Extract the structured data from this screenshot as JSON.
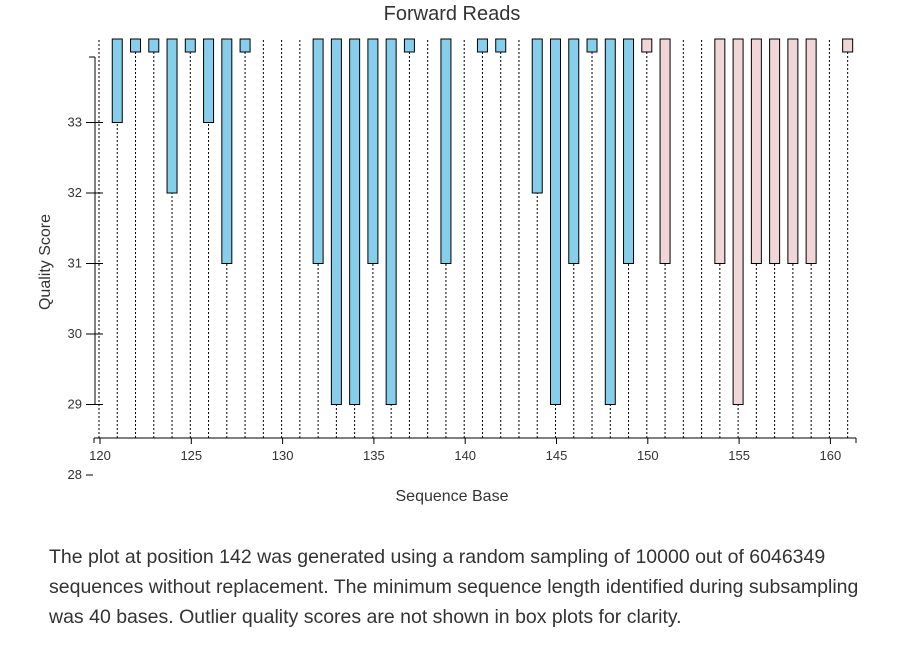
{
  "caption": "The plot at position 142 was generated using a random sampling of 10000 out of 6046349 sequences without replacement. The minimum sequence length identified during subsampling was 40 bases. Outlier quality scores are not shown in box plots for clarity.",
  "colors": {
    "normal": "#87ceeb",
    "low": "#f0d6d6",
    "outline": "#000000"
  },
  "chart_data": {
    "type": "box",
    "title": "Forward Reads",
    "xlabel": "Sequence Base",
    "ylabel": "Quality Score",
    "xlim": [
      120,
      161
    ],
    "ylim": [
      28,
      34.2
    ],
    "xticks": [
      120,
      125,
      130,
      135,
      140,
      145,
      150,
      155,
      160
    ],
    "yticks": [
      28,
      29,
      30,
      31,
      32,
      33
    ],
    "grid": false,
    "series": [
      {
        "x": 120,
        "whisker_low": 29,
        "q1": 34.3,
        "median": 34.3,
        "q3": 34.3,
        "whisker_high": 34.3,
        "color": "normal"
      },
      {
        "x": 121,
        "whisker_low": 28.5,
        "q1": 33,
        "median": 34.3,
        "q3": 34.3,
        "whisker_high": 34.3,
        "color": "normal"
      },
      {
        "x": 122,
        "whisker_low": 28.5,
        "q1": 34,
        "median": 34.3,
        "q3": 34.3,
        "whisker_high": 34.3,
        "color": "normal"
      },
      {
        "x": 123,
        "whisker_low": 28.5,
        "q1": 34,
        "median": 34.3,
        "q3": 34.3,
        "whisker_high": 34.3,
        "color": "normal"
      },
      {
        "x": 124,
        "whisker_low": 28.5,
        "q1": 32,
        "median": 34.3,
        "q3": 34.3,
        "whisker_high": 34.3,
        "color": "normal"
      },
      {
        "x": 125,
        "whisker_low": 28.5,
        "q1": 34,
        "median": 34.3,
        "q3": 34.3,
        "whisker_high": 34.3,
        "color": "normal"
      },
      {
        "x": 126,
        "whisker_low": 28.5,
        "q1": 33,
        "median": 34.3,
        "q3": 34.3,
        "whisker_high": 34.3,
        "color": "normal"
      },
      {
        "x": 127,
        "whisker_low": 28.5,
        "q1": 31,
        "median": 34.3,
        "q3": 34.3,
        "whisker_high": 34.3,
        "color": "normal"
      },
      {
        "x": 128,
        "whisker_low": 28.5,
        "q1": 34,
        "median": 34.3,
        "q3": 34.3,
        "whisker_high": 34.3,
        "color": "normal"
      },
      {
        "x": 129,
        "whisker_low": 28.5,
        "q1": 34.3,
        "median": 34.3,
        "q3": 34.3,
        "whisker_high": 34.3,
        "color": "normal"
      },
      {
        "x": 130,
        "whisker_low": 28.5,
        "q1": 34.3,
        "median": 34.3,
        "q3": 34.3,
        "whisker_high": 34.3,
        "color": "normal"
      },
      {
        "x": 131,
        "whisker_low": 28.5,
        "q1": 34.3,
        "median": 34.3,
        "q3": 34.3,
        "whisker_high": 34.3,
        "color": "normal"
      },
      {
        "x": 132,
        "whisker_low": 28.5,
        "q1": 31,
        "median": 34.3,
        "q3": 34.3,
        "whisker_high": 34.3,
        "color": "normal"
      },
      {
        "x": 133,
        "whisker_low": 28.5,
        "q1": 29,
        "median": 34.3,
        "q3": 34.3,
        "whisker_high": 34.3,
        "color": "normal"
      },
      {
        "x": 134,
        "whisker_low": 28.5,
        "q1": 29,
        "median": 34.3,
        "q3": 34.3,
        "whisker_high": 34.3,
        "color": "normal"
      },
      {
        "x": 135,
        "whisker_low": 28.5,
        "q1": 31,
        "median": 34.3,
        "q3": 34.3,
        "whisker_high": 34.3,
        "color": "normal"
      },
      {
        "x": 136,
        "whisker_low": 28.5,
        "q1": 29,
        "median": 34.3,
        "q3": 34.3,
        "whisker_high": 34.3,
        "color": "normal"
      },
      {
        "x": 137,
        "whisker_low": 28.5,
        "q1": 34,
        "median": 34.3,
        "q3": 34.3,
        "whisker_high": 34.3,
        "color": "normal"
      },
      {
        "x": 138,
        "whisker_low": 28.5,
        "q1": 34.3,
        "median": 34.3,
        "q3": 34.3,
        "whisker_high": 34.3,
        "color": "normal"
      },
      {
        "x": 139,
        "whisker_low": 28.5,
        "q1": 31,
        "median": 34.3,
        "q3": 34.3,
        "whisker_high": 34.3,
        "color": "normal"
      },
      {
        "x": 140,
        "whisker_low": 28.5,
        "q1": 34.3,
        "median": 34.3,
        "q3": 34.3,
        "whisker_high": 34.3,
        "color": "normal"
      },
      {
        "x": 141,
        "whisker_low": 28.5,
        "q1": 34,
        "median": 34.3,
        "q3": 34.3,
        "whisker_high": 34.3,
        "color": "normal"
      },
      {
        "x": 142,
        "whisker_low": 28.5,
        "q1": 34,
        "median": 34.3,
        "q3": 34.3,
        "whisker_high": 34.3,
        "color": "normal"
      },
      {
        "x": 143,
        "whisker_low": 28.5,
        "q1": 34.3,
        "median": 34.3,
        "q3": 34.3,
        "whisker_high": 34.3,
        "color": "normal"
      },
      {
        "x": 144,
        "whisker_low": 28.5,
        "q1": 32,
        "median": 34.3,
        "q3": 34.3,
        "whisker_high": 34.3,
        "color": "normal"
      },
      {
        "x": 145,
        "whisker_low": 28.5,
        "q1": 29,
        "median": 34.3,
        "q3": 34.3,
        "whisker_high": 34.3,
        "color": "normal"
      },
      {
        "x": 146,
        "whisker_low": 28.5,
        "q1": 31,
        "median": 34.3,
        "q3": 34.3,
        "whisker_high": 34.3,
        "color": "normal"
      },
      {
        "x": 147,
        "whisker_low": 28.5,
        "q1": 34,
        "median": 34.3,
        "q3": 34.3,
        "whisker_high": 34.3,
        "color": "normal"
      },
      {
        "x": 148,
        "whisker_low": 28.5,
        "q1": 29,
        "median": 34.3,
        "q3": 34.3,
        "whisker_high": 34.3,
        "color": "normal"
      },
      {
        "x": 149,
        "whisker_low": 28.5,
        "q1": 31,
        "median": 34.3,
        "q3": 34.3,
        "whisker_high": 34.3,
        "color": "normal"
      },
      {
        "x": 150,
        "whisker_low": 28.5,
        "q1": 34,
        "median": 34.3,
        "q3": 34.3,
        "whisker_high": 34.3,
        "color": "low"
      },
      {
        "x": 151,
        "whisker_low": 28.5,
        "q1": 31,
        "median": 34.3,
        "q3": 34.3,
        "whisker_high": 34.3,
        "color": "low"
      },
      {
        "x": 152,
        "whisker_low": 28.5,
        "q1": 34.3,
        "median": 34.3,
        "q3": 34.3,
        "whisker_high": 34.3,
        "color": "low"
      },
      {
        "x": 153,
        "whisker_low": 28.5,
        "q1": 34.3,
        "median": 34.3,
        "q3": 34.3,
        "whisker_high": 34.3,
        "color": "low"
      },
      {
        "x": 154,
        "whisker_low": 28.5,
        "q1": 31,
        "median": 34.3,
        "q3": 34.3,
        "whisker_high": 34.3,
        "color": "low"
      },
      {
        "x": 155,
        "whisker_low": 28.5,
        "q1": 29,
        "median": 34.3,
        "q3": 34.3,
        "whisker_high": 34.3,
        "color": "low"
      },
      {
        "x": 156,
        "whisker_low": 28.5,
        "q1": 31,
        "median": 34.3,
        "q3": 34.3,
        "whisker_high": 34.3,
        "color": "low"
      },
      {
        "x": 157,
        "whisker_low": 28.5,
        "q1": 31,
        "median": 34.3,
        "q3": 34.3,
        "whisker_high": 34.3,
        "color": "low"
      },
      {
        "x": 158,
        "whisker_low": 28.5,
        "q1": 31,
        "median": 34.3,
        "q3": 34.3,
        "whisker_high": 34.3,
        "color": "low"
      },
      {
        "x": 159,
        "whisker_low": 28.5,
        "q1": 31,
        "median": 34.3,
        "q3": 34.3,
        "whisker_high": 34.3,
        "color": "low"
      },
      {
        "x": 160,
        "whisker_low": 28.5,
        "q1": 34.3,
        "median": 34.3,
        "q3": 34.3,
        "whisker_high": 34.3,
        "color": "low"
      },
      {
        "x": 161,
        "whisker_low": 28.5,
        "q1": 34,
        "median": 34.3,
        "q3": 34.3,
        "whisker_high": 34.3,
        "color": "low"
      }
    ]
  }
}
